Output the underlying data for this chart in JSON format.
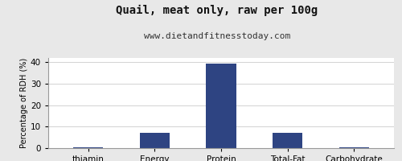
{
  "title": "Quail, meat only, raw per 100g",
  "subtitle": "www.dietandfitnesstoday.com",
  "categories": [
    "thiamin",
    "Energy",
    "Protein",
    "Total-Fat",
    "Carbohydrate"
  ],
  "values": [
    0.3,
    7.2,
    39.2,
    7.2,
    0.3
  ],
  "bar_color": "#2e4482",
  "ylabel": "Percentage of RDH (%)",
  "ylim": [
    0,
    42
  ],
  "yticks": [
    0,
    10,
    20,
    30,
    40
  ],
  "background_color": "#e8e8e8",
  "plot_bg_color": "#ffffff",
  "title_fontsize": 10,
  "subtitle_fontsize": 8,
  "ylabel_fontsize": 7,
  "tick_fontsize": 7.5
}
